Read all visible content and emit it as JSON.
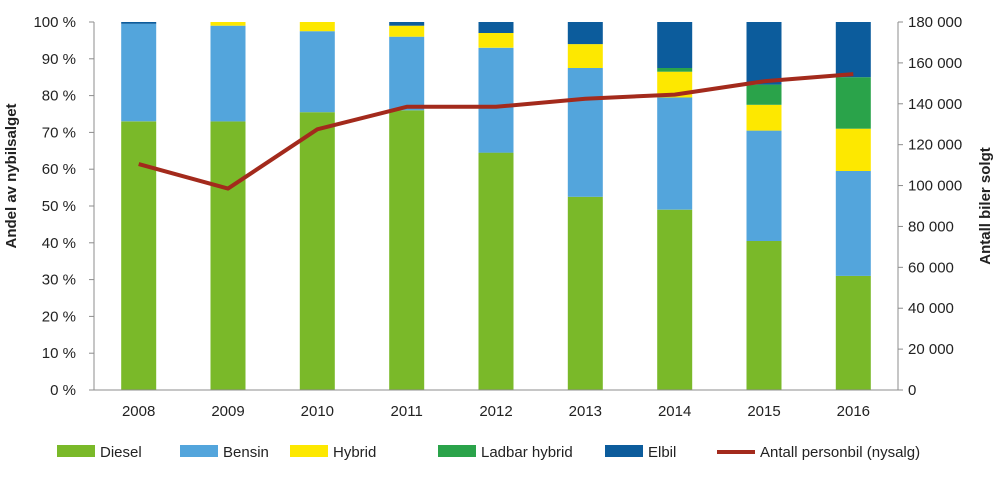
{
  "chart_data": {
    "type": "bar",
    "stacked": true,
    "categories": [
      "2008",
      "2009",
      "2010",
      "2011",
      "2012",
      "2013",
      "2014",
      "2015",
      "2016"
    ],
    "series": [
      {
        "name": "Diesel",
        "color": "#7ab929",
        "values": [
          73,
          73,
          75.5,
          76,
          64.5,
          52.5,
          49,
          40.5,
          31
        ]
      },
      {
        "name": "Bensin",
        "color": "#53a5dc",
        "values": [
          26.5,
          26,
          22,
          20,
          28.5,
          35,
          30.5,
          30,
          28.5
        ]
      },
      {
        "name": "Hybrid",
        "color": "#fde800",
        "values": [
          0,
          1,
          2.5,
          3,
          4,
          6.5,
          7,
          7,
          11.5
        ]
      },
      {
        "name": "Ladbar hybrid",
        "color": "#2aa34a",
        "values": [
          0,
          0,
          0,
          0,
          0,
          0,
          1,
          5.5,
          14
        ]
      },
      {
        "name": "Elbil",
        "color": "#0c5c9c",
        "values": [
          0.5,
          0,
          0,
          1,
          3,
          6,
          12.5,
          17,
          15
        ]
      }
    ],
    "line_series": {
      "name": "Antall personbil (nysalg)",
      "color": "#a32a1c",
      "axis": "right",
      "values": [
        110500,
        98500,
        127500,
        138500,
        138500,
        142500,
        144500,
        151000,
        154500
      ]
    },
    "ylabel": "Andel av nybilsalget",
    "y2label": "Antall biler solgt",
    "ylim": [
      0,
      100
    ],
    "y2lim": [
      0,
      180000
    ],
    "y_ticks": [
      "0 %",
      "10 %",
      "20 %",
      "30 %",
      "40 %",
      "50 %",
      "60 %",
      "70 %",
      "80 %",
      "90 %",
      "100 %"
    ],
    "y2_ticks": [
      "0",
      "20 000",
      "40 000",
      "60 000",
      "80 000",
      "100 000",
      "120 000",
      "140 000",
      "160 000",
      "180 000"
    ],
    "grid": false,
    "legend_position": "bottom"
  }
}
